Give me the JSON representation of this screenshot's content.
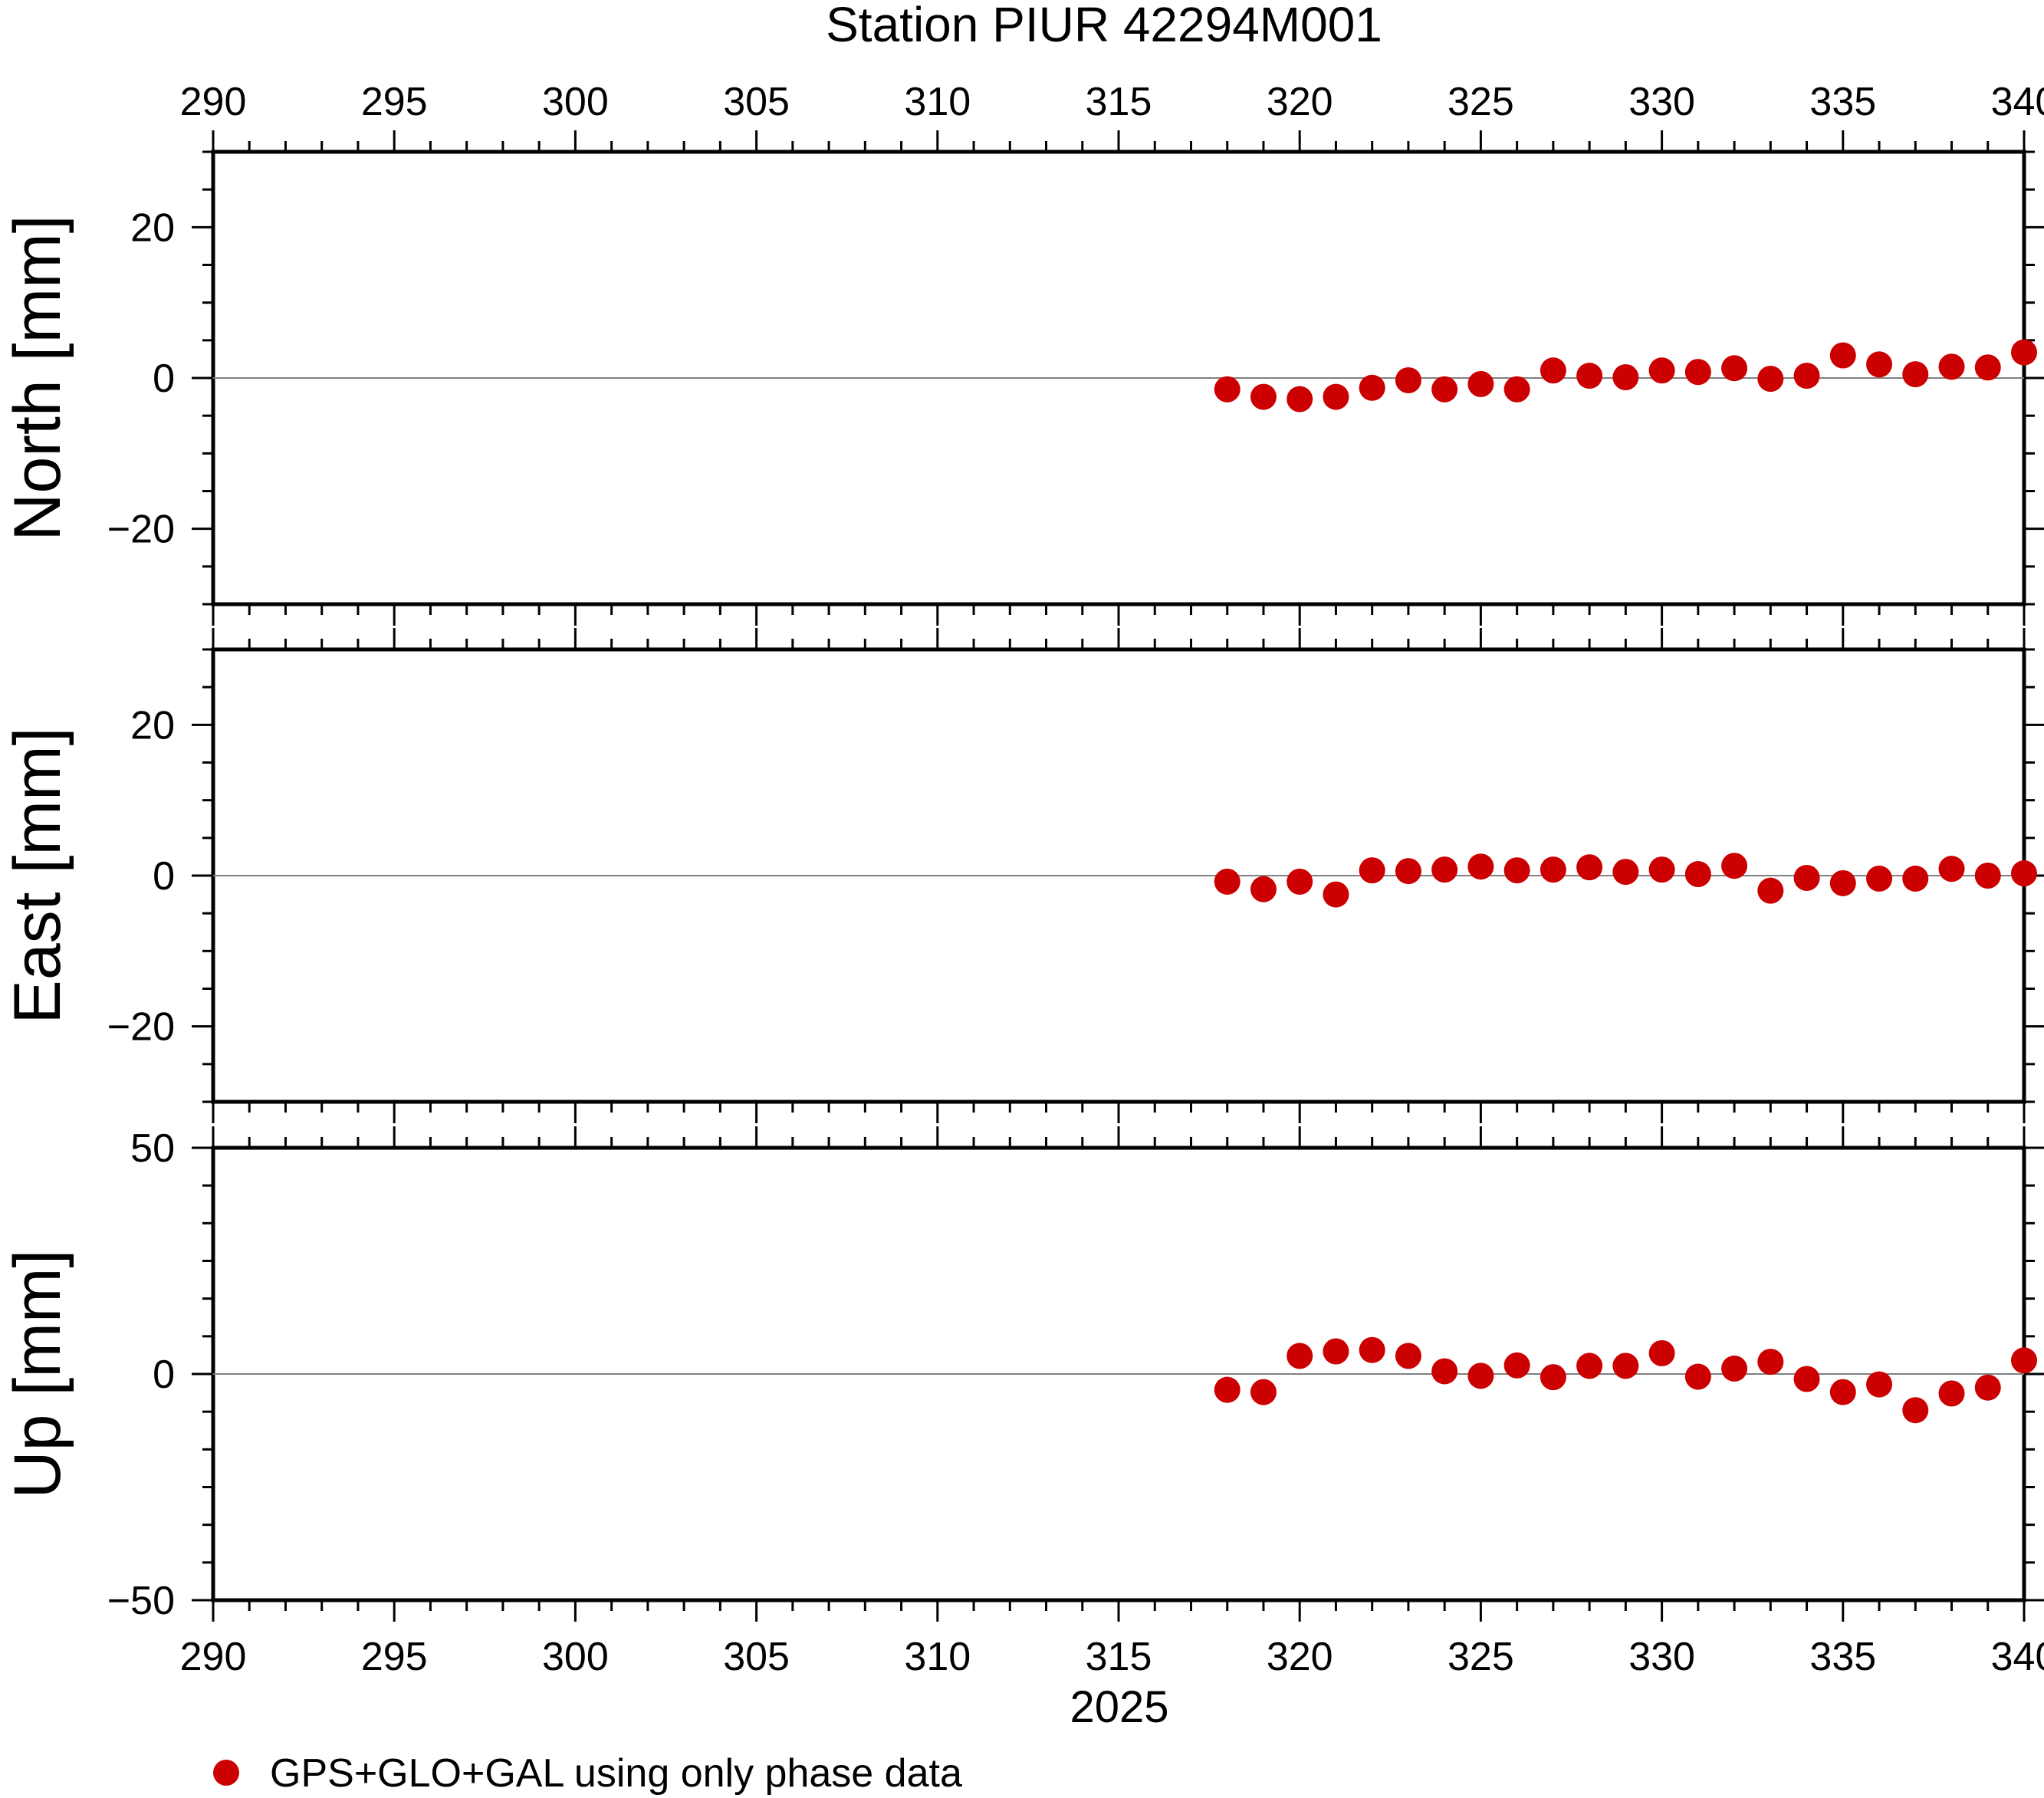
{
  "chart_data": {
    "type": "scatter",
    "title": "Station PIUR 42294M001",
    "xlabel": "2025",
    "xlim": [
      290,
      340
    ],
    "x_ticks": [
      290,
      295,
      300,
      305,
      310,
      315,
      320,
      325,
      330,
      335,
      340
    ],
    "marker_color": "#cc0000",
    "zero_line": true,
    "grid": false,
    "legend": {
      "position": "bottom-left",
      "label": "GPS+GLO+GAL using only phase data"
    },
    "x": [
      318,
      319,
      320,
      321,
      322,
      323,
      324,
      325,
      326,
      327,
      328,
      329,
      330,
      331,
      332,
      333,
      334,
      335,
      336,
      337,
      338,
      339,
      340
    ],
    "panels": [
      {
        "ylabel": "North [mm]",
        "ylim": [
          -30,
          30
        ],
        "y_ticks": [
          -20,
          0,
          20
        ],
        "values": [
          -1.5,
          -2.5,
          -2.8,
          -2.5,
          -1.3,
          -0.3,
          -1.5,
          -0.8,
          -1.5,
          1.0,
          0.3,
          0.1,
          1.0,
          0.8,
          1.3,
          -0.1,
          0.3,
          3.0,
          1.8,
          0.5,
          1.5,
          1.4,
          3.4
        ]
      },
      {
        "ylabel": "East [mm]",
        "ylim": [
          -30,
          30
        ],
        "y_ticks": [
          -20,
          0,
          20
        ],
        "values": [
          -0.8,
          -1.8,
          -0.8,
          -2.5,
          0.7,
          0.6,
          0.8,
          1.2,
          0.7,
          0.8,
          1.1,
          0.5,
          0.8,
          0.2,
          1.3,
          -2.0,
          -0.3,
          -1.0,
          -0.4,
          -0.4,
          0.9,
          0.0,
          0.3
        ]
      },
      {
        "ylabel": "Up [mm]",
        "ylim": [
          -50,
          50
        ],
        "y_ticks": [
          -50,
          0,
          50
        ],
        "values": [
          -3.5,
          -4.0,
          4.0,
          5.0,
          5.3,
          4.0,
          0.6,
          -0.4,
          1.9,
          -0.7,
          1.8,
          1.8,
          4.6,
          -0.6,
          1.2,
          2.7,
          -1.1,
          -4.0,
          -2.3,
          -8.0,
          -4.3,
          -3.0,
          3.0
        ]
      }
    ]
  }
}
